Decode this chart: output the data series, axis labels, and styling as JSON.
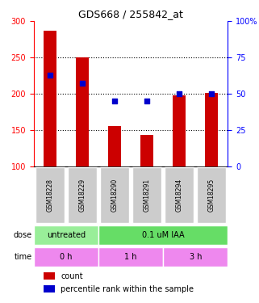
{
  "title": "GDS668 / 255842_at",
  "samples": [
    "GSM18228",
    "GSM18229",
    "GSM18290",
    "GSM18291",
    "GSM18294",
    "GSM18295"
  ],
  "bar_values": [
    287,
    250,
    155,
    143,
    198,
    201
  ],
  "percentile_values": [
    63,
    57,
    45,
    45,
    50,
    50
  ],
  "bar_color": "#cc0000",
  "percentile_color": "#0000cc",
  "ylim_left": [
    100,
    300
  ],
  "ylim_right": [
    0,
    100
  ],
  "yticks_left": [
    100,
    150,
    200,
    250,
    300
  ],
  "yticks_right": [
    0,
    25,
    50,
    75,
    100
  ],
  "ytick_labels_right": [
    "0",
    "25",
    "50",
    "75",
    "100%"
  ],
  "dose_labels": [
    {
      "text": "untreated",
      "cols": [
        0,
        1
      ],
      "color": "#99ff99"
    },
    {
      "text": "0.1 uM IAA",
      "cols": [
        2,
        3,
        4,
        5
      ],
      "color": "#66ee66"
    }
  ],
  "time_labels": [
    {
      "text": "0 h",
      "cols": [
        0,
        1
      ],
      "color": "#ee88ee"
    },
    {
      "text": "1 h",
      "cols": [
        2,
        3
      ],
      "color": "#ee88ee"
    },
    {
      "text": "3 h",
      "cols": [
        4,
        5
      ],
      "color": "#ee88ee"
    }
  ],
  "sample_bg_color": "#cccccc",
  "legend_items": [
    {
      "color": "#cc0000",
      "label": "count"
    },
    {
      "color": "#0000cc",
      "label": "percentile rank within the sample"
    }
  ],
  "bar_width": 0.4
}
